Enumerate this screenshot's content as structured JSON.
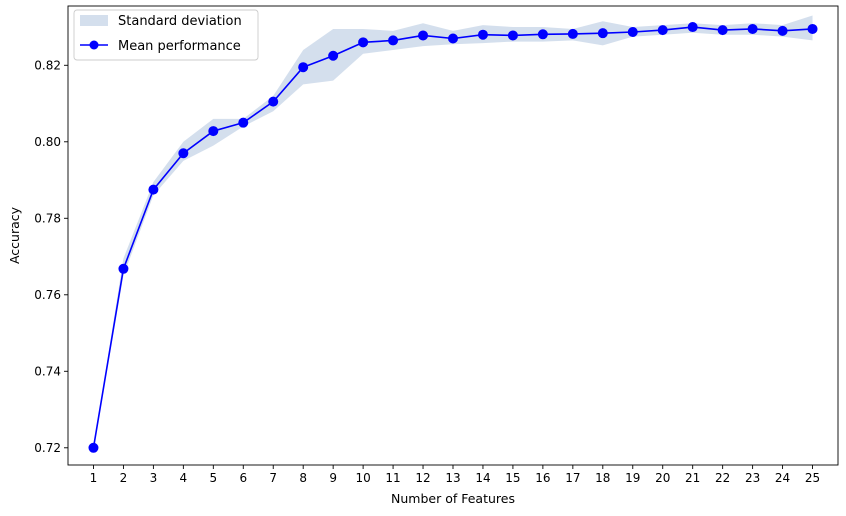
{
  "chart_data": {
    "type": "line",
    "title": "",
    "xlabel": "Number of Features",
    "ylabel": "Accuracy",
    "x": [
      1,
      2,
      3,
      4,
      5,
      6,
      7,
      8,
      9,
      10,
      11,
      12,
      13,
      14,
      15,
      16,
      17,
      18,
      19,
      20,
      21,
      22,
      23,
      24,
      25
    ],
    "xlim": [
      0.15,
      25.85
    ],
    "ylim": [
      0.7155,
      0.8355
    ],
    "yticks": [
      0.72,
      0.74,
      0.76,
      0.78,
      0.8,
      0.82
    ],
    "ytick_labels": [
      "0.72",
      "0.74",
      "0.76",
      "0.78",
      "0.80",
      "0.82"
    ],
    "xtick_labels": [
      "1",
      "2",
      "3",
      "4",
      "5",
      "6",
      "7",
      "8",
      "9",
      "10",
      "11",
      "12",
      "13",
      "14",
      "15",
      "16",
      "17",
      "18",
      "19",
      "20",
      "21",
      "22",
      "23",
      "24",
      "25"
    ],
    "grid": false,
    "legend_position": "top-left",
    "series": [
      {
        "name": "Mean performance",
        "kind": "line-with-markers",
        "color": "#0000ff",
        "values": [
          0.72,
          0.7668,
          0.7875,
          0.797,
          0.8028,
          0.805,
          0.8105,
          0.8195,
          0.8225,
          0.826,
          0.8265,
          0.8278,
          0.827,
          0.828,
          0.8278,
          0.8281,
          0.8282,
          0.8284,
          0.8287,
          0.8292,
          0.83,
          0.8292,
          0.8295,
          0.829,
          0.8295
        ]
      },
      {
        "name": "Standard deviation",
        "kind": "band",
        "color": "#b0c4de",
        "upper": [
          0.72,
          0.7695,
          0.7895,
          0.8,
          0.806,
          0.806,
          0.812,
          0.824,
          0.8295,
          0.8295,
          0.829,
          0.831,
          0.829,
          0.8305,
          0.83,
          0.83,
          0.8295,
          0.8315,
          0.83,
          0.8305,
          0.831,
          0.8305,
          0.831,
          0.8305,
          0.833
        ],
        "lower": [
          0.72,
          0.765,
          0.786,
          0.795,
          0.799,
          0.804,
          0.808,
          0.815,
          0.816,
          0.823,
          0.824,
          0.825,
          0.8255,
          0.8258,
          0.8262,
          0.8262,
          0.8265,
          0.8252,
          0.8275,
          0.828,
          0.8285,
          0.828,
          0.828,
          0.8275,
          0.8265
        ]
      }
    ]
  }
}
